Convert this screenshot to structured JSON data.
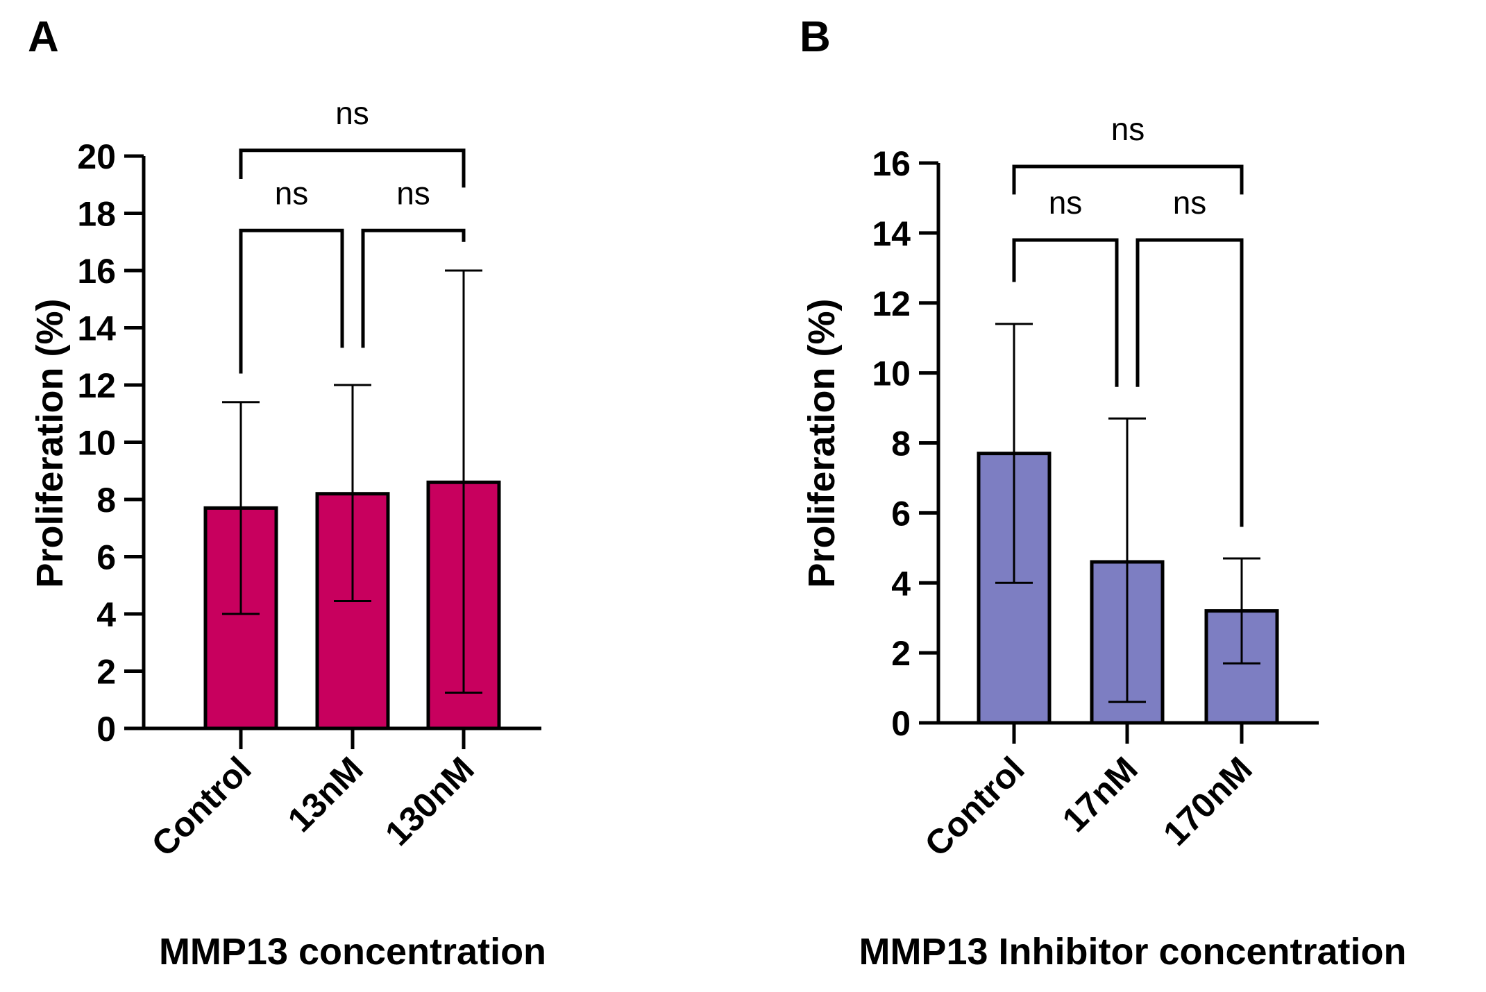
{
  "chart_data": [
    {
      "type": "bar",
      "panel_label": "A",
      "categories": [
        "Control",
        "13nM",
        "130nM"
      ],
      "values": [
        7.7,
        8.2,
        8.6
      ],
      "error_upper": [
        11.4,
        12.0,
        16.0
      ],
      "error_lower": [
        4.0,
        4.45,
        1.25
      ],
      "bar_color": "#C8005E",
      "ylabel": "Proliferation (%)",
      "xlabel": "MMP13 concentration",
      "ylim": [
        0,
        20
      ],
      "yticks": [
        "0",
        "2",
        "4",
        "6",
        "8",
        "10",
        "12",
        "14",
        "16",
        "18",
        "20"
      ],
      "comparisons": [
        {
          "from": 0,
          "to": 1,
          "label": "ns",
          "y": 17.4,
          "drops": [
            12.4,
            13.3
          ]
        },
        {
          "from": 1,
          "to": 2,
          "label": "ns",
          "y": 17.4,
          "drops": [
            13.3,
            17.0
          ]
        },
        {
          "from": 0,
          "to": 2,
          "label": "ns",
          "y": 20.2,
          "drops": [
            19.2,
            18.9
          ]
        }
      ]
    },
    {
      "type": "bar",
      "panel_label": "B",
      "categories": [
        "Control",
        "17nM",
        "170nM"
      ],
      "values": [
        7.7,
        4.6,
        3.2
      ],
      "error_upper": [
        11.4,
        8.7,
        4.7
      ],
      "error_lower": [
        4.0,
        0.6,
        1.7
      ],
      "bar_color": "#7D7EC2",
      "ylabel": "Proliferation (%)",
      "xlabel": "MMP13 Inhibitor concentration",
      "ylim": [
        0,
        16
      ],
      "yticks": [
        "0",
        "2",
        "4",
        "6",
        "8",
        "10",
        "12",
        "14",
        "16"
      ],
      "comparisons": [
        {
          "from": 0,
          "to": 1,
          "label": "ns",
          "y": 13.8,
          "drops": [
            12.6,
            9.6
          ]
        },
        {
          "from": 1,
          "to": 2,
          "label": "ns",
          "y": 13.8,
          "drops": [
            9.6,
            5.6
          ]
        },
        {
          "from": 0,
          "to": 2,
          "label": "ns",
          "y": 15.9,
          "drops": [
            15.1,
            15.1
          ]
        }
      ]
    }
  ]
}
